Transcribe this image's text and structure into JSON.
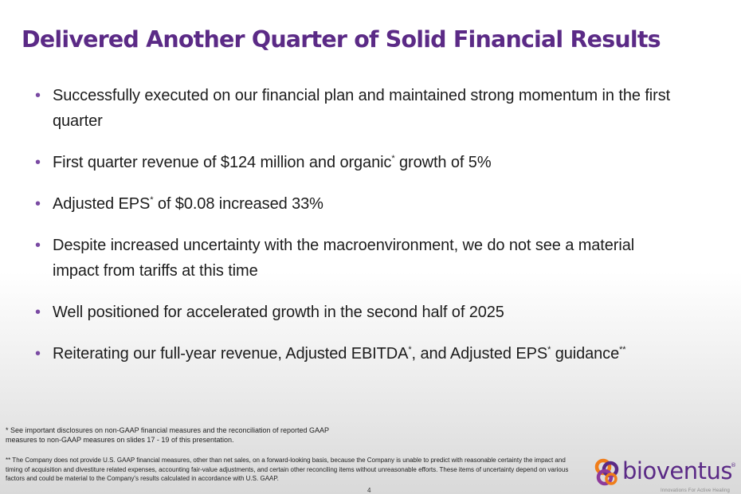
{
  "slide": {
    "title": "Delivered Another Quarter of Solid Financial Results",
    "page_number": "4"
  },
  "bullets": [
    {
      "segments": [
        "Successfully executed on our financial plan and maintained strong momentum in the first quarter"
      ]
    },
    {
      "segments": [
        "First quarter revenue of $124 million and organic",
        "*",
        " growth of 5%"
      ]
    },
    {
      "segments": [
        "Adjusted EPS",
        "*",
        " of $0.08 increased 33%"
      ]
    },
    {
      "segments": [
        "Despite increased uncertainty with the macroenvironment, we do not see a material impact from tariffs at this time"
      ]
    },
    {
      "segments": [
        "Well positioned for accelerated growth in the second half of 2025"
      ]
    },
    {
      "segments": [
        "Reiterating our full-year revenue, Adjusted EBITDA",
        "*",
        ", and Adjusted EPS",
        "*",
        " guidance",
        "**"
      ]
    }
  ],
  "footnotes": {
    "note1": "* See important disclosures on non-GAAP financial measures and the reconciliation of reported GAAP measures to non-GAAP measures on slides 17 - 19 of this presentation.",
    "note2": "** The Company does not provide U.S. GAAP financial measures, other than net sales, on a forward-looking basis, because the Company is unable to predict with reasonable certainty the impact and timing of acquisition and divestiture related expenses, accounting fair-value adjustments, and certain other reconciling items without unreasonable efforts.  These items of uncertainty depend on various factors and could be material to the Company's results calculated in accordance with U.S. GAAP."
  },
  "logo": {
    "name": "bioventus",
    "registered_mark": "®",
    "tagline": "Innovations For Active Healing",
    "icon": "bioventus-logo-icon",
    "colors": {
      "purple": "#5b2a86",
      "orange": "#f07d1a"
    }
  },
  "colors": {
    "title": "#5b2a86",
    "bullet_dot": "#7a4aa3"
  }
}
